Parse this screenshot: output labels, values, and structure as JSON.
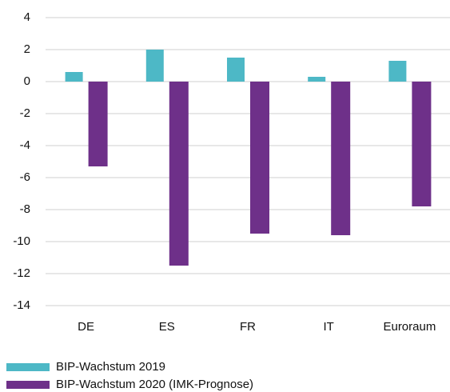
{
  "chart_data": {
    "type": "bar",
    "categories": [
      "DE",
      "ES",
      "FR",
      "IT",
      "Euroraum"
    ],
    "series": [
      {
        "name": "BIP-Wachstum 2019",
        "color": "#4db8c6",
        "values": [
          0.6,
          2.0,
          1.5,
          0.3,
          1.3
        ]
      },
      {
        "name": "BIP-Wachstum 2020 (IMK-Prognose)",
        "color": "#6e3089",
        "values": [
          -5.3,
          -11.5,
          -9.5,
          -9.6,
          -7.8
        ]
      }
    ],
    "ylim": [
      -14,
      4
    ],
    "yticks": [
      -14,
      -12,
      -10,
      -8,
      -6,
      -4,
      -2,
      0,
      2,
      4
    ],
    "grid": true
  }
}
